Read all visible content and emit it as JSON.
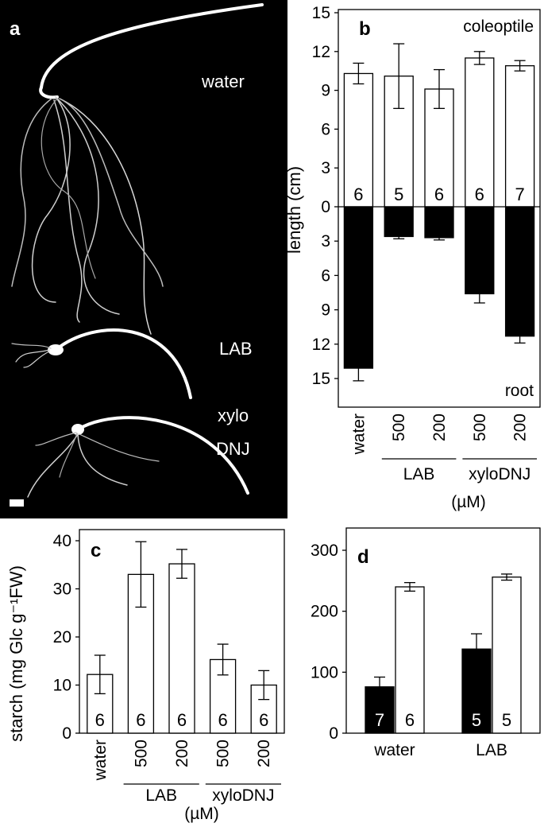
{
  "panels": {
    "a": {
      "letter": "a",
      "labels": [
        "water",
        "LAB",
        "xylo",
        "DNJ"
      ]
    },
    "b": {
      "letter": "b",
      "ylabel": "length (cm)",
      "unit": "(µM)"
    },
    "c": {
      "letter": "c",
      "unit": "(µM)"
    },
    "d": {
      "letter": "d"
    }
  },
  "chart_data": [
    {
      "panel": "b",
      "type": "bar",
      "title": "coleoptile",
      "categories": [
        "water",
        "500",
        "200",
        "500",
        "200"
      ],
      "groups": [
        {
          "label": "LAB",
          "from": 1,
          "to": 2
        },
        {
          "label": "xyloDNJ",
          "from": 3,
          "to": 4
        }
      ],
      "values": [
        10.3,
        10.1,
        9.1,
        11.5,
        10.9
      ],
      "errors": [
        0.8,
        2.5,
        1.5,
        0.5,
        0.4
      ],
      "n": [
        "6",
        "5",
        "6",
        "6",
        "7"
      ],
      "ylim": [
        0,
        15
      ],
      "yticks": [
        "0",
        "3",
        "6",
        "9",
        "12",
        "15"
      ],
      "fill": "#ffffff",
      "grid": false
    },
    {
      "panel": "b",
      "type": "bar",
      "title": "root",
      "categories": [
        "water",
        "500",
        "200",
        "500",
        "200"
      ],
      "values": [
        14.1,
        2.6,
        2.7,
        7.6,
        11.3
      ],
      "errors": [
        1.1,
        0.2,
        0.2,
        0.8,
        0.6
      ],
      "ylim": [
        15,
        0
      ],
      "yticks": [
        "3",
        "6",
        "9",
        "12",
        "15"
      ],
      "fill": "#000000",
      "grid": false
    },
    {
      "panel": "c",
      "type": "bar",
      "ylabel": "starch (mg Glc g⁻¹FW)",
      "categories": [
        "water",
        "500",
        "200",
        "500",
        "200"
      ],
      "groups": [
        {
          "label": "LAB",
          "from": 1,
          "to": 2
        },
        {
          "label": "xyloDNJ",
          "from": 3,
          "to": 4
        }
      ],
      "values": [
        12.2,
        33.0,
        35.2,
        15.3,
        10.0
      ],
      "errors": [
        4.0,
        6.8,
        3.0,
        3.2,
        3.0
      ],
      "n": [
        "6",
        "6",
        "6",
        "6",
        "6"
      ],
      "ylim": [
        0,
        40
      ],
      "yticks": [
        "0",
        "10",
        "20",
        "30",
        "40"
      ],
      "fill": "#ffffff",
      "grid": false
    },
    {
      "panel": "d",
      "type": "bar",
      "categories": [
        "water",
        "LAB"
      ],
      "series": [
        {
          "fill": "#000000",
          "values": [
            76,
            138
          ],
          "errors": [
            16,
            25
          ],
          "n": [
            "7",
            "5"
          ]
        },
        {
          "fill": "#ffffff",
          "values": [
            240,
            256
          ],
          "errors": [
            7,
            5
          ],
          "n": [
            "6",
            "5"
          ]
        }
      ],
      "ylim": [
        0,
        300
      ],
      "yticks": [
        "0",
        "100",
        "200",
        "300"
      ],
      "grid": false
    }
  ]
}
